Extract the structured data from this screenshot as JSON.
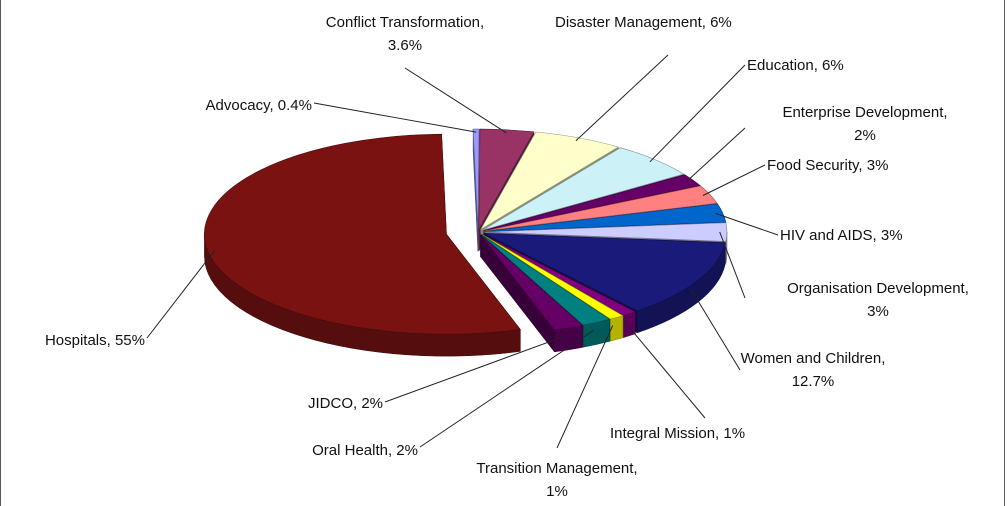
{
  "chart_data": {
    "type": "pie3d",
    "labels": [
      [
        "Advocacy, 0.4%"
      ],
      [
        "Conflict Transformation,",
        "3.6%"
      ],
      [
        "Disaster Management, 6%"
      ],
      [
        "Education, 6%"
      ],
      [
        "Enterprise Development,",
        "2%"
      ],
      [
        "Food Security, 3%"
      ],
      [
        "HIV  and AIDS, 3%"
      ],
      [
        "Organisation Development,",
        "3%"
      ],
      [
        "Women and Children,",
        "12.7%"
      ],
      [
        "Integral Mission, 1%"
      ],
      [
        "Transition Management,",
        "1%"
      ],
      [
        "Oral Health, 2%"
      ],
      [
        "JIDCO, 2%"
      ],
      [
        "Hospitals, 55%"
      ]
    ],
    "values": [
      0.4,
      3.6,
      6,
      6,
      2,
      3,
      3,
      3,
      12.7,
      1,
      1,
      2,
      2,
      55
    ],
    "colors": [
      "#9999ff",
      "#993366",
      "#ffffcc",
      "#ccf2f8",
      "#660066",
      "#ff8080",
      "#0066cc",
      "#ccccff",
      "#1a1a7a",
      "#800080",
      "#ffff00",
      "#008080",
      "#660066",
      "#7a1212"
    ]
  }
}
